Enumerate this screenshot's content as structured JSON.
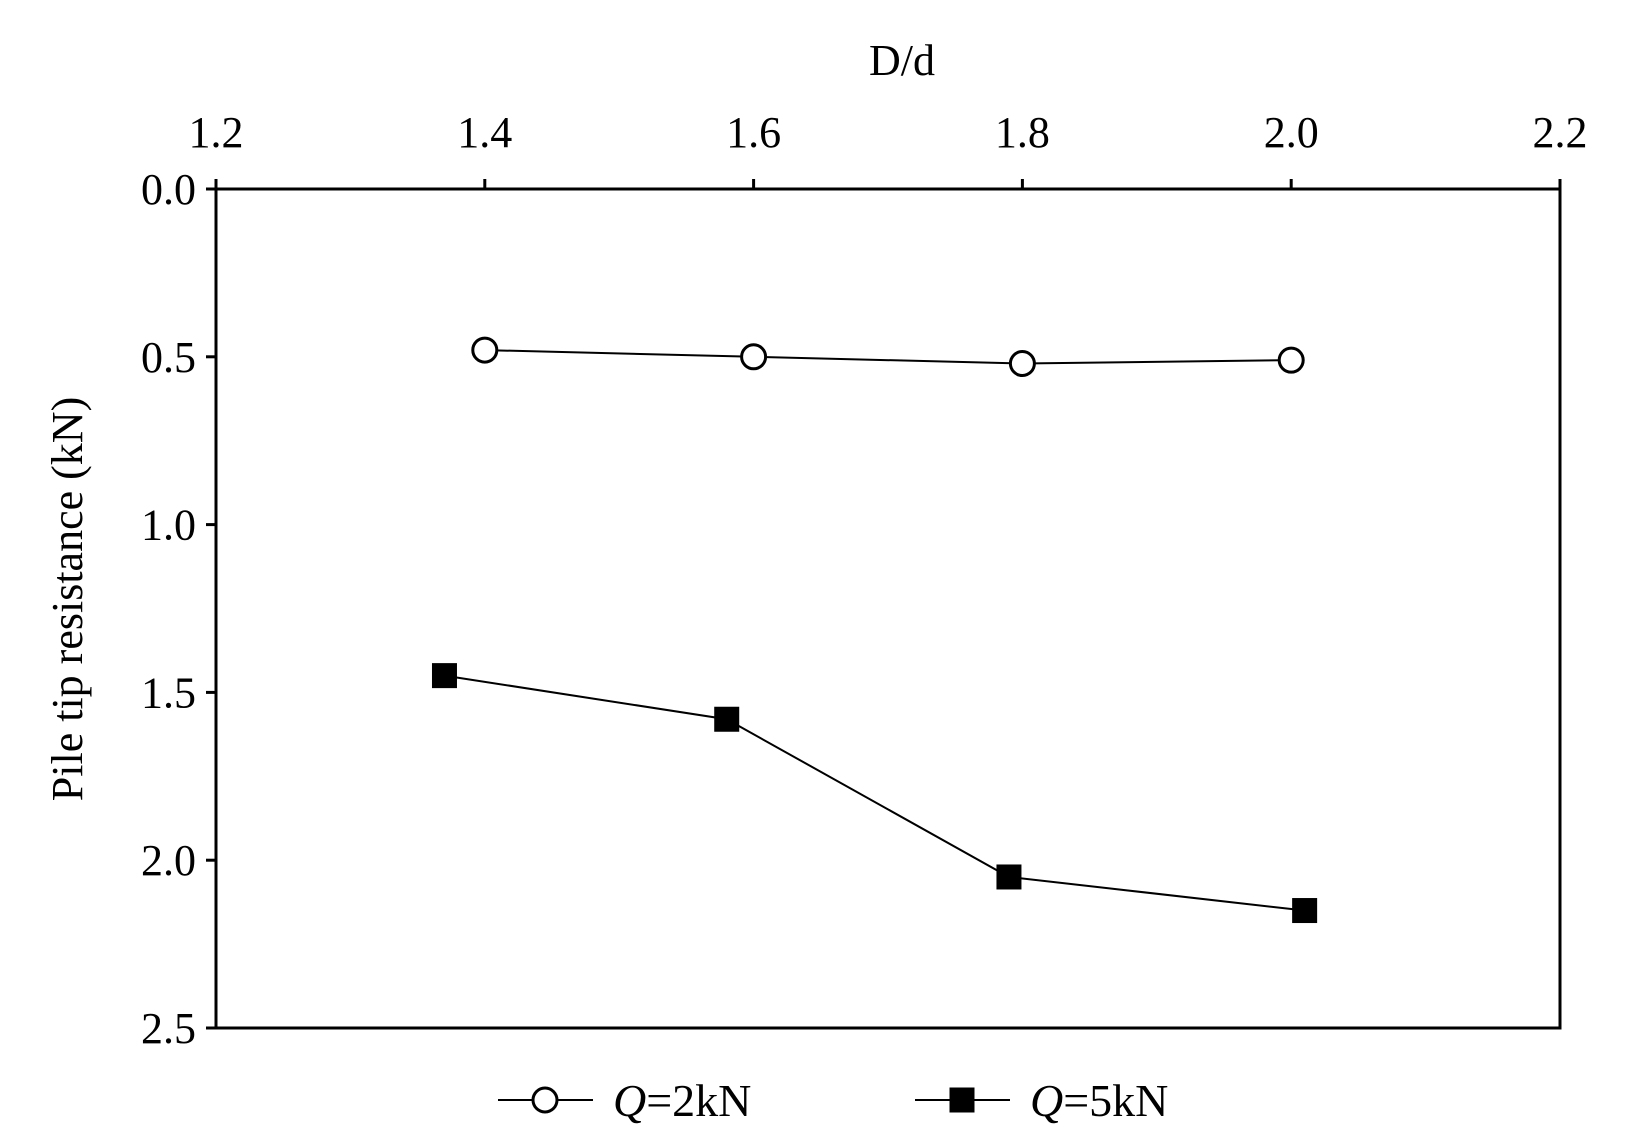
{
  "chart_data": {
    "type": "line",
    "xlabel": "D/d",
    "ylabel": "Pile tip resistance (kN)",
    "x_axis_position": "top",
    "y_axis_inverted": true,
    "xlim": [
      1.2,
      2.2
    ],
    "ylim": [
      0.0,
      2.5
    ],
    "x_ticks": [
      1.2,
      1.4,
      1.6,
      1.8,
      2.0,
      2.2
    ],
    "x_tick_labels": [
      "1.2",
      "1.4",
      "1.6",
      "1.8",
      "2.0",
      "2.2"
    ],
    "y_ticks": [
      0.0,
      0.5,
      1.0,
      1.5,
      2.0,
      2.5
    ],
    "y_tick_labels": [
      "0.0",
      "0.5",
      "1.0",
      "1.5",
      "2.0",
      "2.5"
    ],
    "grid": false,
    "legend_position": "bottom-center",
    "legend": [
      {
        "italic": "Q",
        "rest": "=2kN",
        "marker": "open-circle"
      },
      {
        "italic": "Q",
        "rest": "=5kN",
        "marker": "filled-square"
      }
    ],
    "series": [
      {
        "name": "Q=2kN",
        "marker": "open-circle",
        "color": "#000000",
        "x": [
          1.4,
          1.6,
          1.8,
          2.0
        ],
        "y": [
          0.48,
          0.5,
          0.52,
          0.51
        ]
      },
      {
        "name": "Q=5kN",
        "marker": "filled-square",
        "color": "#000000",
        "x": [
          1.37,
          1.58,
          1.79,
          2.01
        ],
        "y": [
          1.45,
          1.58,
          2.05,
          2.15
        ]
      }
    ]
  }
}
